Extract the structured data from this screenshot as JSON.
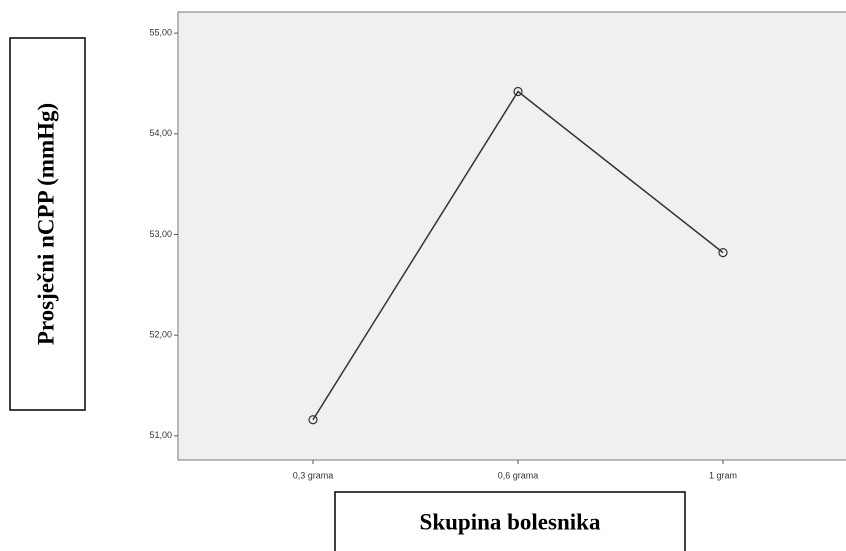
{
  "chart_data": {
    "type": "line",
    "x_label": "Skupina bolesnika",
    "y_label": "Prosječni nCPP (mmHg)",
    "categories": [
      "0,3 grama",
      "0,6 grama",
      "1 gram"
    ],
    "values": [
      51.16,
      54.42,
      52.82
    ],
    "color": "#333333",
    "ylim": [
      50.76,
      55.21
    ],
    "yticks": [
      {
        "value": 51,
        "label": "51,00"
      },
      {
        "value": 52,
        "label": "52,00"
      },
      {
        "value": 53,
        "label": "53,00"
      },
      {
        "value": 54,
        "label": "54,00"
      },
      {
        "value": 55,
        "label": "55,00"
      }
    ],
    "grid": false
  }
}
